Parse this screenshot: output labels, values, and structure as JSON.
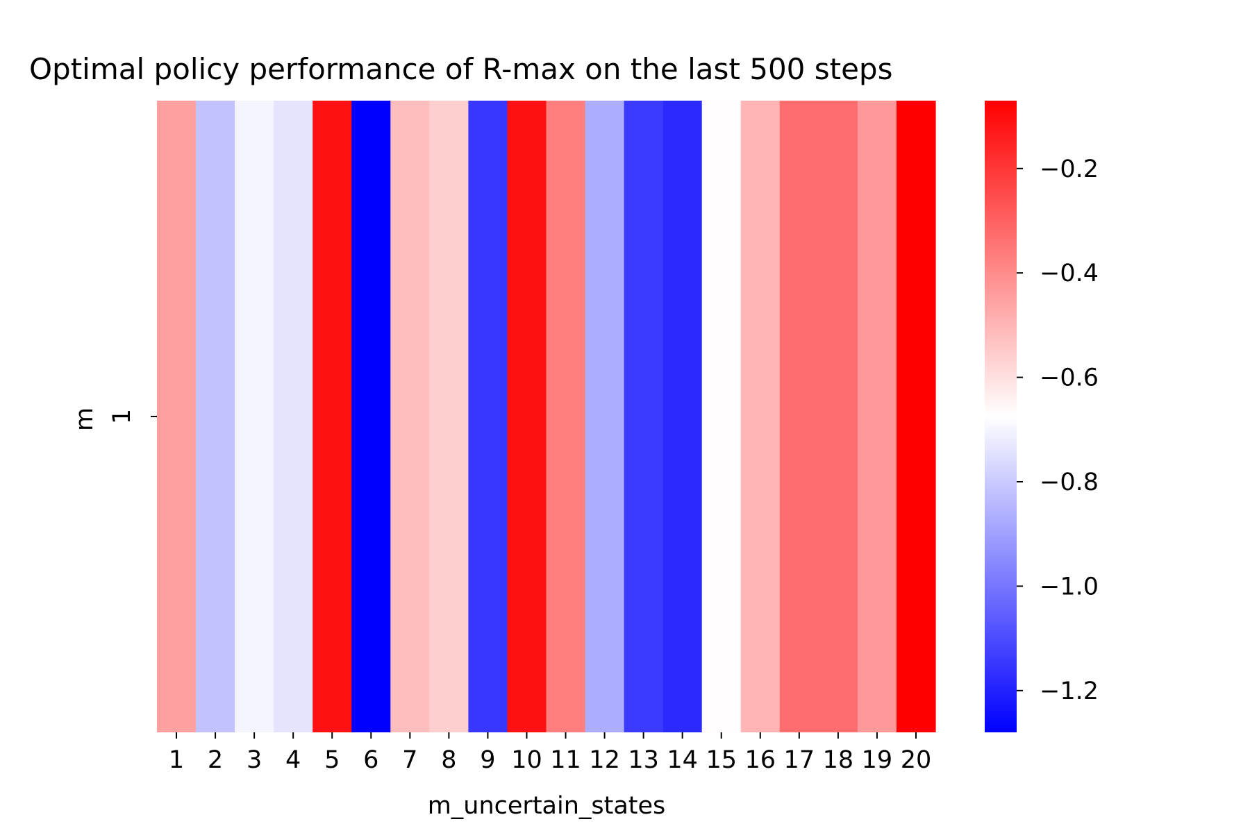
{
  "chart_data": {
    "type": "heatmap",
    "title": "Optimal policy performance of R-max on the last 500 steps",
    "xlabel": "m_uncertain_states",
    "ylabel": "m",
    "x": [
      "1",
      "2",
      "3",
      "4",
      "5",
      "6",
      "7",
      "8",
      "9",
      "10",
      "11",
      "12",
      "13",
      "14",
      "15",
      "16",
      "17",
      "18",
      "19",
      "20"
    ],
    "y": [
      "1"
    ],
    "values": [
      [
        -0.45,
        -0.82,
        -0.7,
        -0.74,
        -0.11,
        -1.28,
        -0.52,
        -0.56,
        -1.15,
        -0.11,
        -0.37,
        -0.87,
        -1.14,
        -1.18,
        -0.67,
        -0.5,
        -0.33,
        -0.33,
        -0.43,
        -0.07
      ]
    ],
    "colorbar": {
      "min": -1.28,
      "max": -0.07,
      "center": -0.675,
      "ticks": [
        -0.2,
        -0.4,
        -0.6,
        -0.8,
        -1.0,
        -1.2
      ],
      "tick_labels": [
        "−0.2",
        "−0.4",
        "−0.6",
        "−0.8",
        "−1.0",
        "−1.2"
      ],
      "colormap": "bwr",
      "colors": {
        "low": "#0000ff",
        "mid": "#ffffff",
        "high": "#ff0000"
      }
    }
  }
}
